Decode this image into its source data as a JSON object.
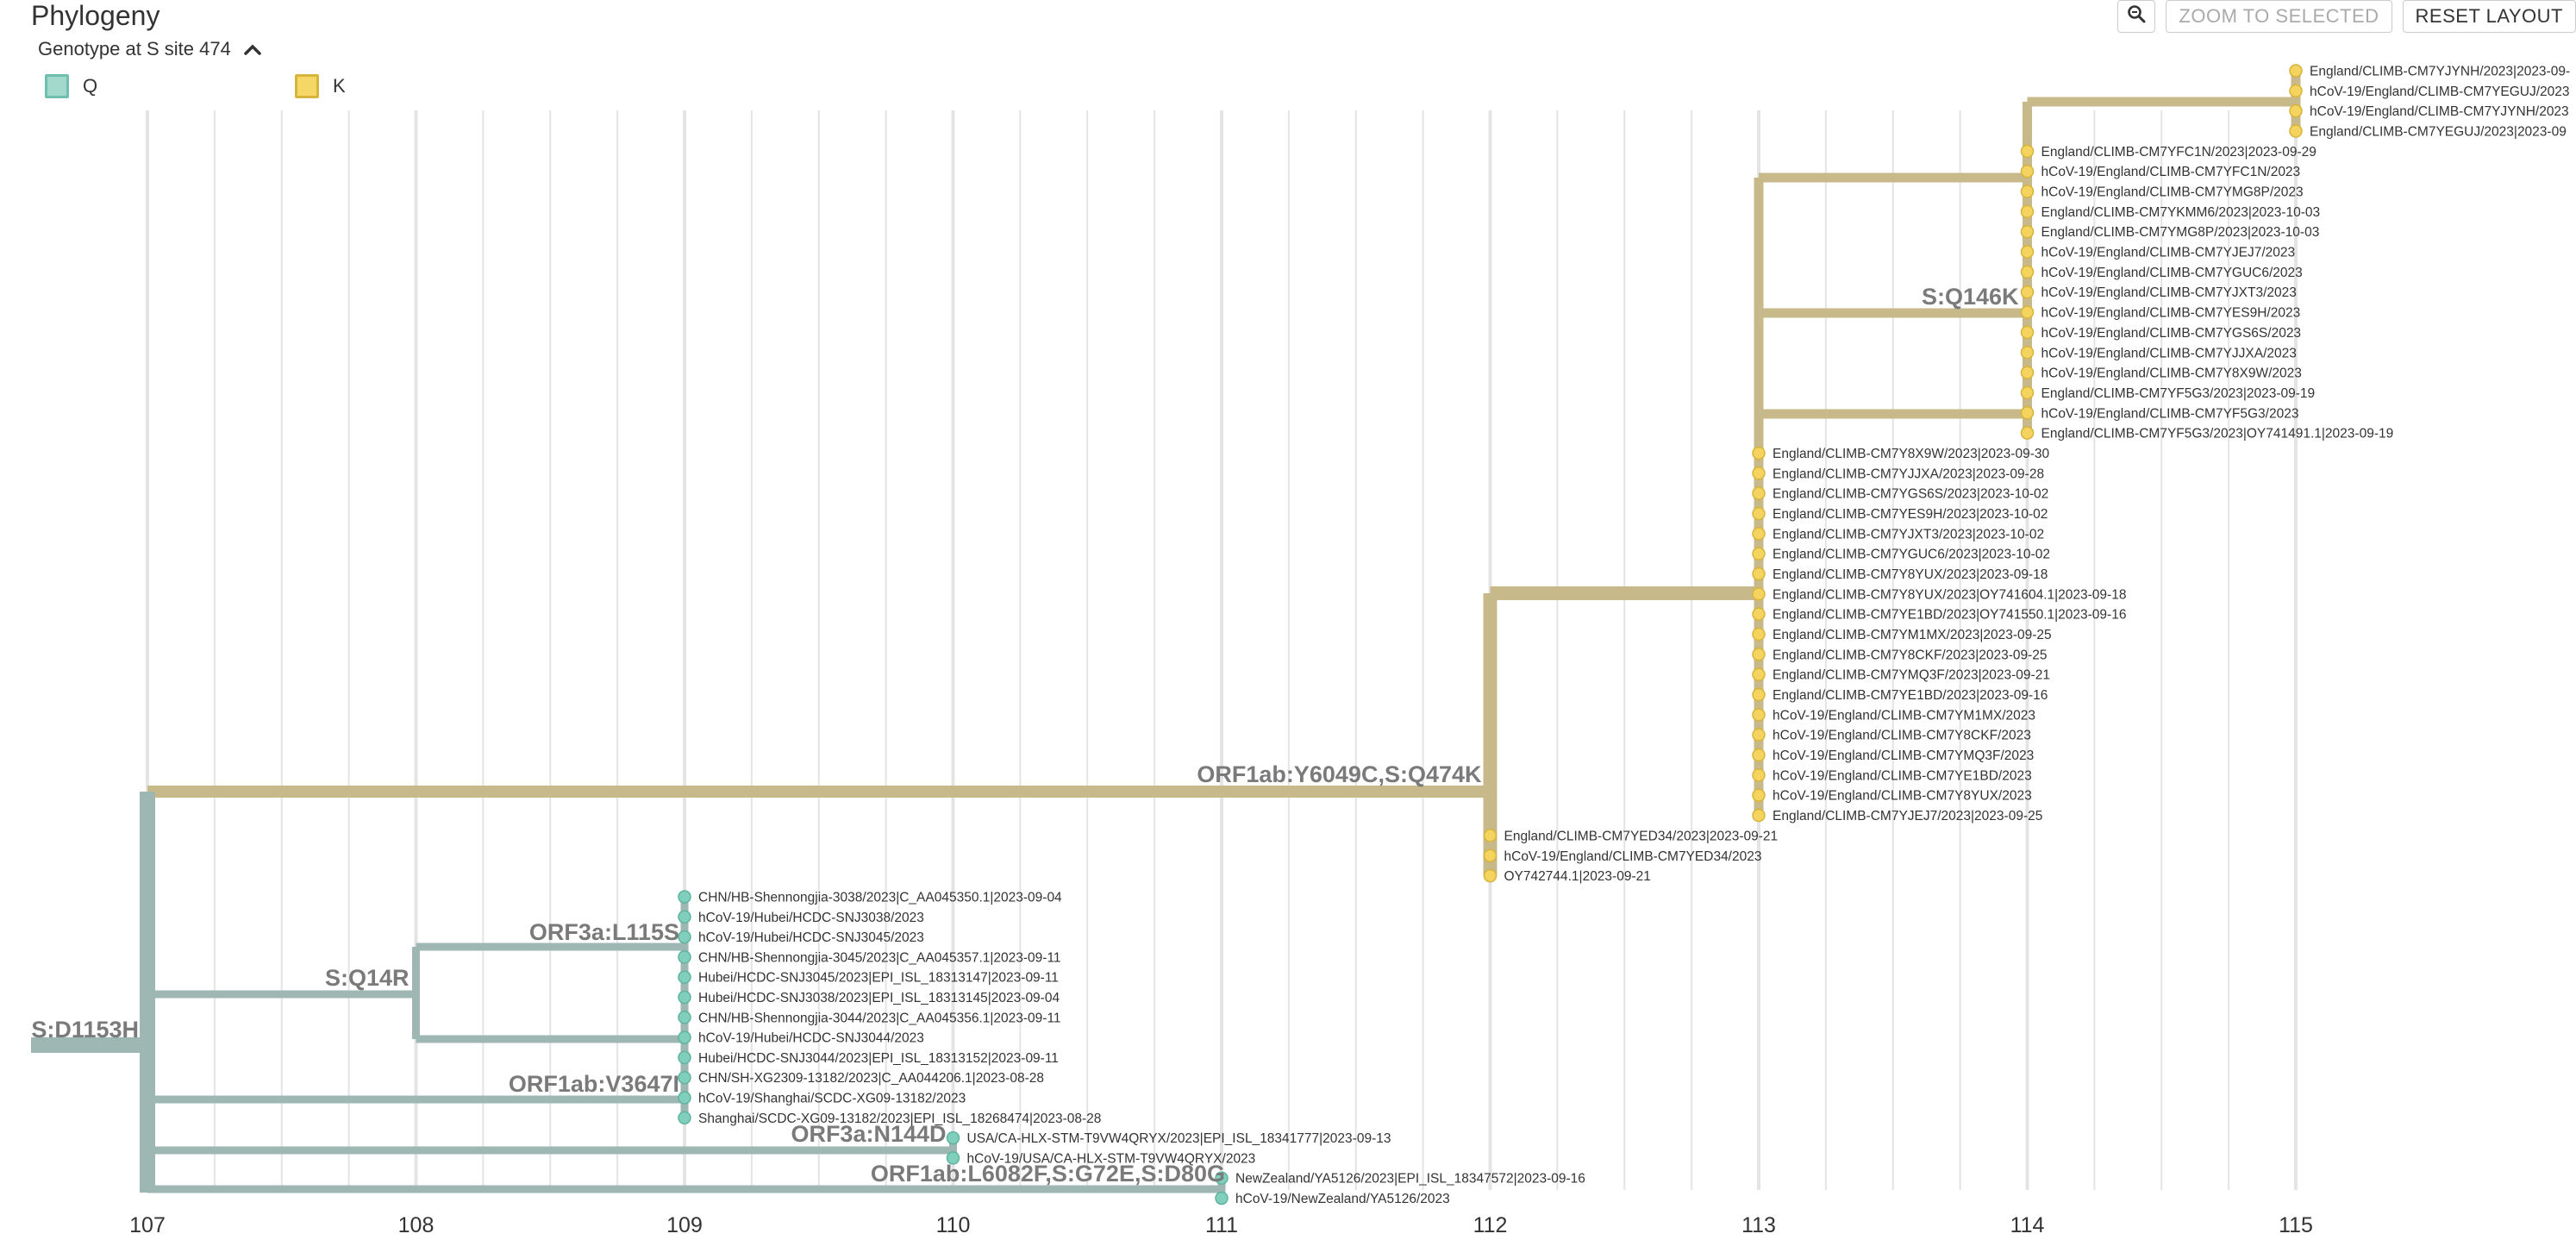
{
  "panel": {
    "title": "Phylogeny",
    "color_by_label": "Genotype at S site 474",
    "legend": [
      {
        "label": "Q",
        "fill": "#a3d8cc",
        "border": "#6fbfae"
      },
      {
        "label": "K",
        "fill": "#f5d766",
        "border": "#d7b43b"
      }
    ],
    "buttons": {
      "zoom_icon": "magnifier-icon",
      "zoom_to_selected": "ZOOM TO SELECTED",
      "reset_layout": "RESET LAYOUT"
    }
  },
  "colors": {
    "q_branch": "#9fb7b2",
    "k_branch": "#c8b98a",
    "q_tip": "#80cfbd",
    "k_tip": "#f4d35e",
    "grid": "#e4e4e4",
    "label": "#7a7a7a"
  },
  "axis": {
    "ticks": [
      "107",
      "108",
      "109",
      "110",
      "111",
      "112",
      "113",
      "114",
      "115"
    ],
    "start": 107,
    "end": 115
  },
  "tree": {
    "root_div": 106.57,
    "mutations": [
      {
        "text": "S:D1153H",
        "branch": "root",
        "color": "q"
      },
      {
        "text": "S:Q14R",
        "branch": "q_clade_a",
        "color": "q"
      },
      {
        "text": "ORF3a:L115S",
        "branch": "q_clade_a1",
        "color": "q"
      },
      {
        "text": "ORF1ab:V3647I",
        "branch": "q_clade_b",
        "color": "q"
      },
      {
        "text": "ORF3a:N144D",
        "branch": "q_clade_c",
        "color": "q"
      },
      {
        "text": "ORF1ab:L6082F,S:G72E,S:D80G",
        "branch": "q_clade_d",
        "color": "q"
      },
      {
        "text": "ORF1ab:Y6049C,S:Q474K",
        "branch": "k_main",
        "color": "k"
      },
      {
        "text": "S:Q146K",
        "branch": "k_c2",
        "color": "k"
      }
    ],
    "k_tips": [
      "England/CLIMB-CM7YJYNH/2023|2023-09-",
      "hCoV-19/England/CLIMB-CM7YEGUJ/2023",
      "hCoV-19/England/CLIMB-CM7YJYNH/2023",
      "England/CLIMB-CM7YEGUJ/2023|2023-09",
      "England/CLIMB-CM7YFC1N/2023|2023-09-29",
      "hCoV-19/England/CLIMB-CM7YFC1N/2023",
      "hCoV-19/England/CLIMB-CM7YMG8P/2023",
      "England/CLIMB-CM7YKMM6/2023|2023-10-03",
      "England/CLIMB-CM7YMG8P/2023|2023-10-03",
      "hCoV-19/England/CLIMB-CM7YJEJ7/2023",
      "hCoV-19/England/CLIMB-CM7YGUC6/2023",
      "hCoV-19/England/CLIMB-CM7YJXT3/2023",
      "hCoV-19/England/CLIMB-CM7YES9H/2023",
      "hCoV-19/England/CLIMB-CM7YGS6S/2023",
      "hCoV-19/England/CLIMB-CM7YJJXA/2023",
      "hCoV-19/England/CLIMB-CM7Y8X9W/2023",
      "England/CLIMB-CM7YF5G3/2023|2023-09-19",
      "hCoV-19/England/CLIMB-CM7YF5G3/2023",
      "England/CLIMB-CM7YF5G3/2023|OY741491.1|2023-09-19",
      "England/CLIMB-CM7Y8X9W/2023|2023-09-30",
      "England/CLIMB-CM7YJJXA/2023|2023-09-28",
      "England/CLIMB-CM7YGS6S/2023|2023-10-02",
      "England/CLIMB-CM7YES9H/2023|2023-10-02",
      "England/CLIMB-CM7YJXT3/2023|2023-10-02",
      "England/CLIMB-CM7YGUC6/2023|2023-10-02",
      "England/CLIMB-CM7Y8YUX/2023|2023-09-18",
      "England/CLIMB-CM7Y8YUX/2023|OY741604.1|2023-09-18",
      "England/CLIMB-CM7YE1BD/2023|OY741550.1|2023-09-16",
      "England/CLIMB-CM7YM1MX/2023|2023-09-25",
      "England/CLIMB-CM7Y8CKF/2023|2023-09-25",
      "England/CLIMB-CM7YMQ3F/2023|2023-09-21",
      "England/CLIMB-CM7YE1BD/2023|2023-09-16",
      "hCoV-19/England/CLIMB-CM7YM1MX/2023",
      "hCoV-19/England/CLIMB-CM7Y8CKF/2023",
      "hCoV-19/England/CLIMB-CM7YMQ3F/2023",
      "hCoV-19/England/CLIMB-CM7YE1BD/2023",
      "hCoV-19/England/CLIMB-CM7Y8YUX/2023",
      "England/CLIMB-CM7YJEJ7/2023|2023-09-25",
      "England/CLIMB-CM7YED34/2023|2023-09-21",
      "hCoV-19/England/CLIMB-CM7YED34/2023",
      "OY742744.1|2023-09-21"
    ],
    "q_tips": [
      "CHN/HB-Shennongjia-3038/2023|C_AA045350.1|2023-09-04",
      "hCoV-19/Hubei/HCDC-SNJ3038/2023",
      "hCoV-19/Hubei/HCDC-SNJ3045/2023",
      "CHN/HB-Shennongjia-3045/2023|C_AA045357.1|2023-09-11",
      "Hubei/HCDC-SNJ3045/2023|EPI_ISL_18313147|2023-09-11",
      "Hubei/HCDC-SNJ3038/2023|EPI_ISL_18313145|2023-09-04",
      "CHN/HB-Shennongjia-3044/2023|C_AA045356.1|2023-09-11",
      "hCoV-19/Hubei/HCDC-SNJ3044/2023",
      "Hubei/HCDC-SNJ3044/2023|EPI_ISL_18313152|2023-09-11",
      "CHN/SH-XG2309-13182/2023|C_AA044206.1|2023-08-28",
      "hCoV-19/Shanghai/SCDC-XG09-13182/2023",
      "Shanghai/SCDC-XG09-13182/2023|EPI_ISL_18268474|2023-08-28",
      "USA/CA-HLX-STM-T9VW4QRYX/2023|EPI_ISL_18341777|2023-09-13",
      "hCoV-19/USA/CA-HLX-STM-T9VW4QRYX/2023",
      "NewZealand/YA5126/2023|EPI_ISL_18347572|2023-09-16",
      "hCoV-19/NewZealand/YA5126/2023"
    ]
  }
}
